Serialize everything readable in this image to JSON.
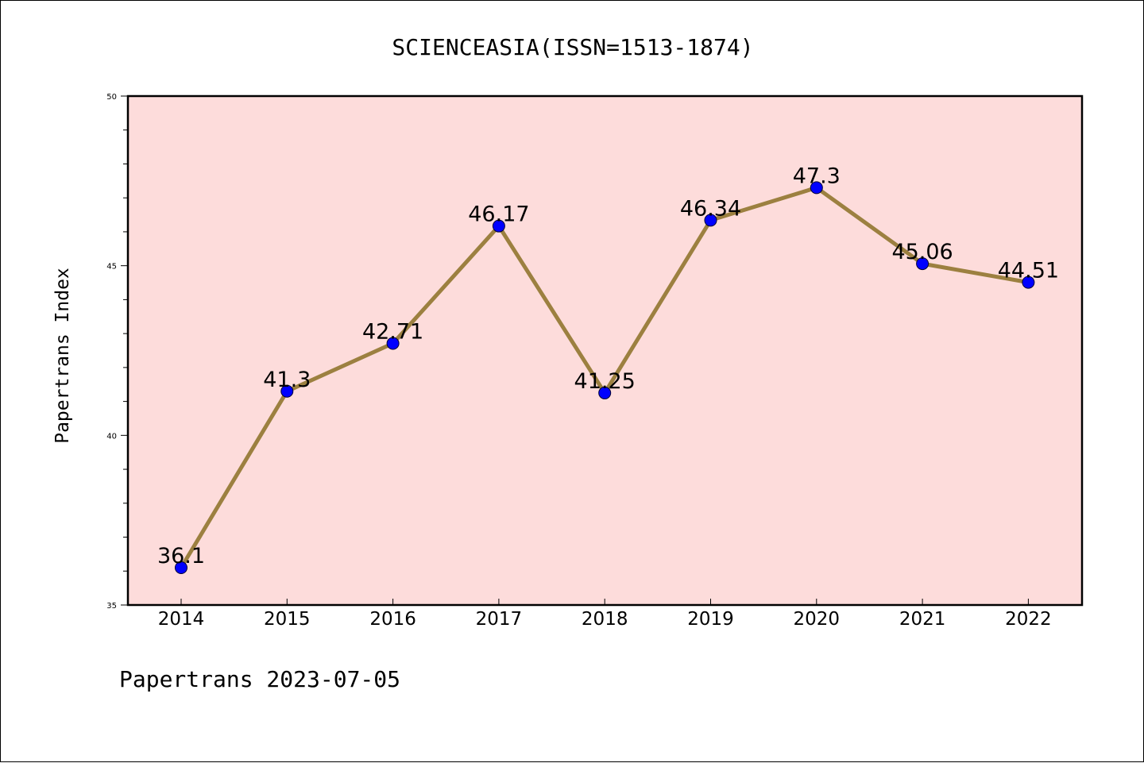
{
  "colors": {
    "plot_background": "#fddcdb",
    "line": "#9c8040",
    "marker": "#0000ff",
    "axis": "#000000"
  },
  "footer": "Papertrans 2023-07-05",
  "chart_data": {
    "type": "line",
    "title": "SCIENCEASIA(ISSN=1513-1874)",
    "xlabel": "",
    "ylabel": "Papertrans Index",
    "categories": [
      "2014",
      "2015",
      "2016",
      "2017",
      "2018",
      "2019",
      "2020",
      "2021",
      "2022"
    ],
    "series": [
      {
        "values": [
          36.1,
          41.3,
          42.71,
          46.17,
          41.25,
          46.34,
          47.3,
          45.06,
          44.51
        ],
        "labels": [
          "36.1",
          "41.3",
          "42.71",
          "46.17",
          "41.25",
          "46.34",
          "47.3",
          "45.06",
          "44.51"
        ]
      }
    ],
    "ylim": [
      35,
      50
    ],
    "yticks": [
      35,
      40,
      45,
      50
    ],
    "grid": false,
    "legend": "none"
  }
}
